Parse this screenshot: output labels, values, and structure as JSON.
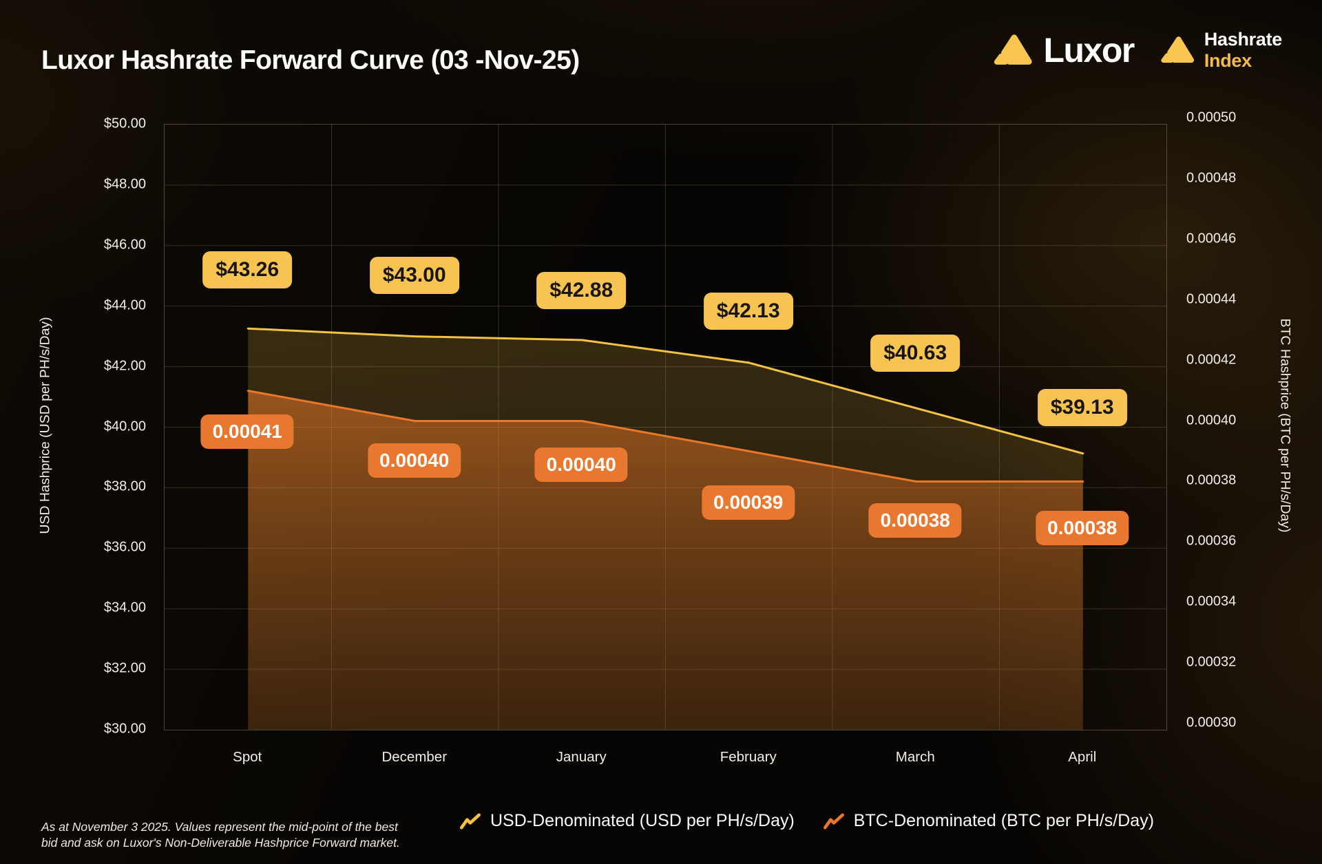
{
  "title": "Luxor Hashrate Forward Curve (03 -Nov-25)",
  "branding": {
    "luxor_wordmark": "Luxor",
    "hashrate_index_line1": "Hashrate",
    "hashrate_index_line2": "Index",
    "logo_gold": "#F9C64F"
  },
  "chart_data": {
    "type": "line",
    "categories": [
      "Spot",
      "December",
      "January",
      "February",
      "March",
      "April"
    ],
    "series": [
      {
        "name": "USD-Denominated (USD per PH/s/Day)",
        "axis": "left",
        "color": "#F5C342",
        "area_fill_top": "rgba(244,196,70,0.20)",
        "area_fill_bottom": "rgba(244,196,70,0.10)",
        "values": [
          43.26,
          43.0,
          42.88,
          42.13,
          40.63,
          39.13
        ],
        "point_labels": [
          "$43.26",
          "$43.00",
          "$42.88",
          "$42.13",
          "$40.63",
          "$39.13"
        ],
        "label_style": "yellow"
      },
      {
        "name": "BTC-Denominated (BTC per PH/s/Day)",
        "axis": "right",
        "color": "#EB7728",
        "area_fill_top": "rgba(236,122,40,0.55)",
        "area_fill_bottom": "rgba(160,75,25,0.22)",
        "values": [
          0.00041,
          0.0004,
          0.0004,
          0.00039,
          0.00038,
          0.00038
        ],
        "point_labels": [
          "0.00041",
          "0.00040",
          "0.00040",
          "0.00039",
          "0.00038",
          "0.00038"
        ],
        "label_style": "orange"
      }
    ],
    "left_axis": {
      "title": "USD Hashprice (USD per PH/s/Day)",
      "min": 30,
      "max": 50,
      "step": 2,
      "tick_labels": [
        "$50.00",
        "$48.00",
        "$46.00",
        "$44.00",
        "$42.00",
        "$40.00",
        "$38.00",
        "$36.00",
        "$34.00",
        "$32.00",
        "$30.00"
      ]
    },
    "right_axis": {
      "title": "BTC Hashprice (BTC per PH/s/Day)",
      "min": 0.0003,
      "max": 0.0005,
      "step": 2e-05,
      "tick_labels": [
        "0.00050",
        "0.00048",
        "0.00046",
        "0.00044",
        "0.00042",
        "0.00040",
        "0.00038",
        "0.00036",
        "0.00034",
        "0.00032",
        "0.00030"
      ]
    },
    "grid": true,
    "legend_position": "bottom"
  },
  "footnote": {
    "line1": "As at November 3 2025. Values represent the mid-point of the best",
    "line2": "bid and ask on Luxor's Non-Deliverable Hashprice Forward market."
  }
}
